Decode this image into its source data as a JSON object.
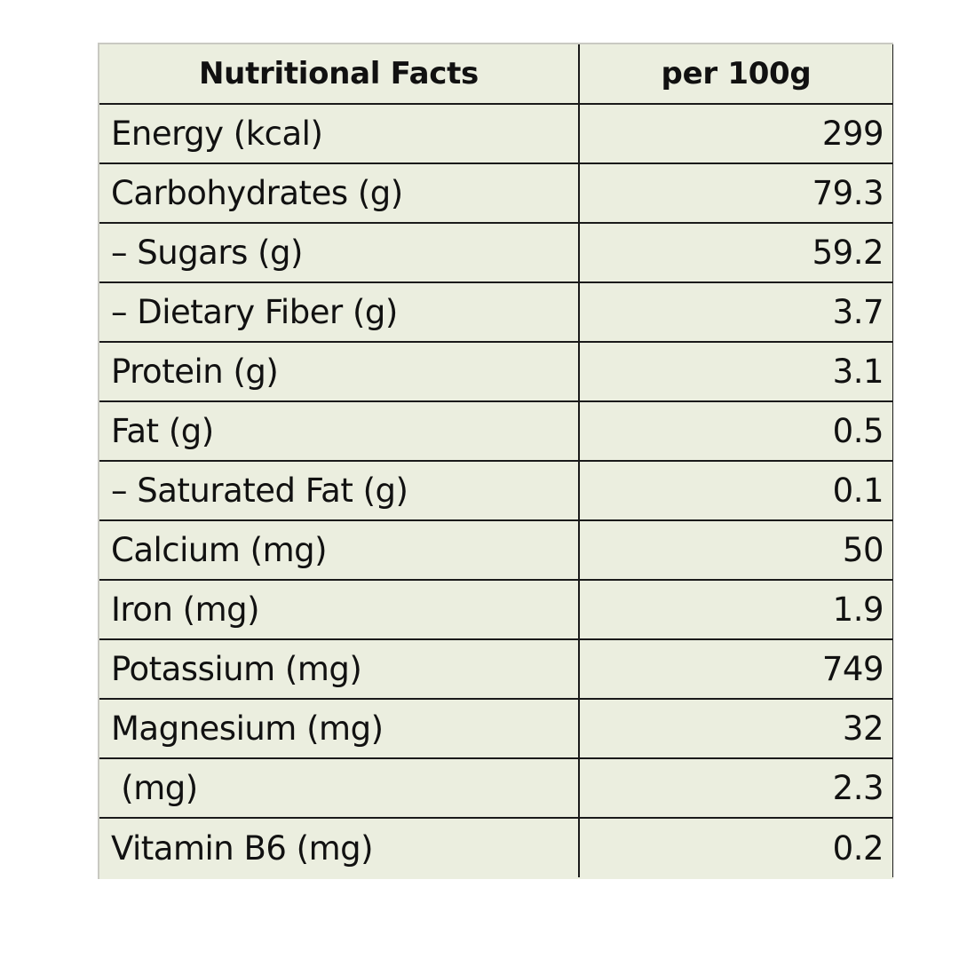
{
  "table": {
    "headers": {
      "label": "Nutritional Facts",
      "value": "per 100g"
    },
    "rows": [
      {
        "label": "Energy (kcal)",
        "value": "299"
      },
      {
        "label": "Carbohydrates (g)",
        "value": "79.3"
      },
      {
        "label": "– Sugars (g)",
        "value": "59.2"
      },
      {
        "label": "– Dietary Fiber (g)",
        "value": "3.7"
      },
      {
        "label": "Protein (g)",
        "value": "3.1"
      },
      {
        "label": "Fat (g)",
        "value": "0.5"
      },
      {
        "label": "– Saturated Fat (g)",
        "value": "0.1"
      },
      {
        "label": "Calcium (mg)",
        "value": "50"
      },
      {
        "label": "Iron (mg)",
        "value": "1.9"
      },
      {
        "label": "Potassium (mg)",
        "value": "749"
      },
      {
        "label": "Magnesium (mg)",
        "value": "32"
      },
      {
        "label": " (mg)",
        "value": "2.3"
      },
      {
        "label": "Vitamin B6 (mg)",
        "value": "0.2"
      }
    ],
    "colors": {
      "cell_background": "#ebeedf",
      "grid_line": "#1a1a1a",
      "text": "#111111"
    }
  }
}
